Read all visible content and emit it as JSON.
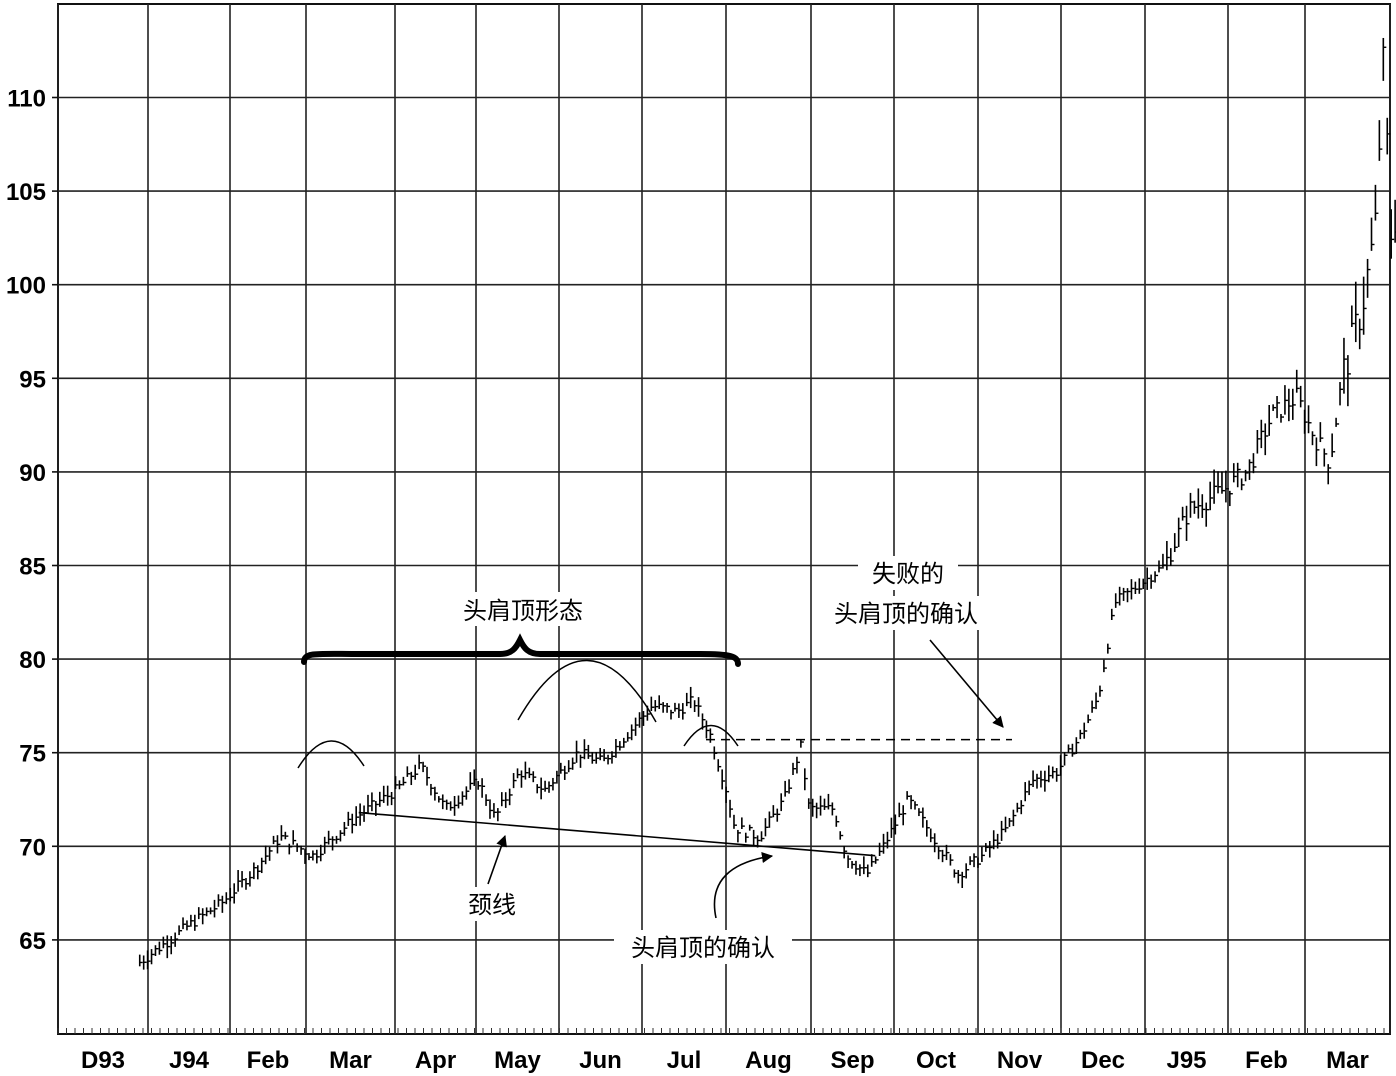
{
  "chart_data": {
    "type": "bar",
    "subtype": "ohlc-daily-price-bars",
    "title": "",
    "xlabel": "",
    "ylabel": "",
    "ylim": [
      60,
      115
    ],
    "y_ticks": [
      65,
      70,
      75,
      80,
      85,
      90,
      95,
      100,
      105,
      110
    ],
    "x_tick_labels": [
      "D93",
      "J94",
      "Feb",
      "Mar",
      "Apr",
      "May",
      "Jun",
      "Jul",
      "Aug",
      "Sep",
      "Oct",
      "Nov",
      "Dec",
      "J95",
      "Feb",
      "Mar"
    ],
    "grid": true,
    "price_path": [
      {
        "m": -0.1,
        "p": 63.8
      },
      {
        "m": 0.2,
        "p": 64.8
      },
      {
        "m": 0.5,
        "p": 65.8
      },
      {
        "m": 0.9,
        "p": 67.0
      },
      {
        "m": 1.3,
        "p": 68.8
      },
      {
        "m": 1.6,
        "p": 70.5
      },
      {
        "m": 2.0,
        "p": 69.5
      },
      {
        "m": 2.5,
        "p": 71.5
      },
      {
        "m": 3.0,
        "p": 73.0
      },
      {
        "m": 3.3,
        "p": 74.3
      },
      {
        "m": 3.6,
        "p": 72.0
      },
      {
        "m": 4.0,
        "p": 73.5
      },
      {
        "m": 4.2,
        "p": 71.5
      },
      {
        "m": 4.5,
        "p": 74.0
      },
      {
        "m": 4.8,
        "p": 73.0
      },
      {
        "m": 5.2,
        "p": 75.0
      },
      {
        "m": 5.5,
        "p": 74.5
      },
      {
        "m": 5.8,
        "p": 76.0
      },
      {
        "m": 6.1,
        "p": 77.5
      },
      {
        "m": 6.4,
        "p": 77.2
      },
      {
        "m": 6.6,
        "p": 77.8
      },
      {
        "m": 6.8,
        "p": 76.0
      },
      {
        "m": 7.0,
        "p": 73.0
      },
      {
        "m": 7.1,
        "p": 71.0
      },
      {
        "m": 7.4,
        "p": 70.5
      },
      {
        "m": 7.7,
        "p": 72.5
      },
      {
        "m": 7.9,
        "p": 75.3
      },
      {
        "m": 8.0,
        "p": 72.0
      },
      {
        "m": 8.3,
        "p": 72.0
      },
      {
        "m": 8.45,
        "p": 69.5
      },
      {
        "m": 8.7,
        "p": 68.5
      },
      {
        "m": 8.9,
        "p": 70.0
      },
      {
        "m": 9.2,
        "p": 72.5
      },
      {
        "m": 9.5,
        "p": 70.5
      },
      {
        "m": 9.8,
        "p": 68.5
      },
      {
        "m": 10.1,
        "p": 69.5
      },
      {
        "m": 10.4,
        "p": 71.0
      },
      {
        "m": 10.7,
        "p": 73.5
      },
      {
        "m": 11.0,
        "p": 74.0
      },
      {
        "m": 11.3,
        "p": 76.0
      },
      {
        "m": 11.5,
        "p": 78.0
      },
      {
        "m": 11.7,
        "p": 83.0
      },
      {
        "m": 12.0,
        "p": 84.0
      },
      {
        "m": 12.3,
        "p": 85.0
      },
      {
        "m": 12.6,
        "p": 88.0
      },
      {
        "m": 13.0,
        "p": 89.0
      },
      {
        "m": 13.3,
        "p": 90.0
      },
      {
        "m": 13.6,
        "p": 93.0
      },
      {
        "m": 13.9,
        "p": 94.0
      },
      {
        "m": 14.1,
        "p": 92.0
      },
      {
        "m": 14.3,
        "p": 90.5
      },
      {
        "m": 14.45,
        "p": 95.0
      },
      {
        "m": 14.7,
        "p": 99.0
      },
      {
        "m": 14.85,
        "p": 103.0
      },
      {
        "m": 14.95,
        "p": 112.0
      },
      {
        "m": 15.05,
        "p": 102.0
      },
      {
        "m": 15.2,
        "p": 108.0
      },
      {
        "m": 15.3,
        "p": 110.5
      }
    ],
    "neckline": [
      {
        "m": 2.55,
        "p": 71.8
      },
      {
        "m": 8.8,
        "p": 69.5
      }
    ],
    "failure_level": 75.7,
    "annotations": {
      "pattern": "头肩顶形态",
      "neckline": "颈线",
      "confirmation": "头肩顶的确认",
      "failed_line1": "失败的",
      "failed_line2": "头肩顶的确认"
    }
  }
}
